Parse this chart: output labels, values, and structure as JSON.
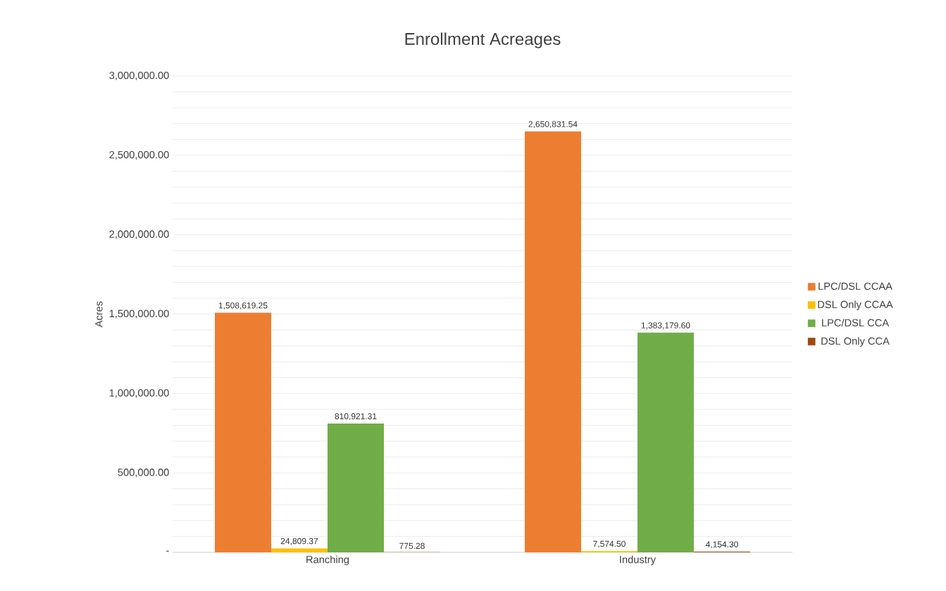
{
  "chart_data": {
    "type": "bar",
    "title": "Enrollment Acreages",
    "ylabel": "Acres",
    "categories": [
      "Ranching",
      "Industry"
    ],
    "series": [
      {
        "name": "LPC/DSL CCAA",
        "color": "#ed7d31",
        "values": [
          1508619.25,
          2650831.54
        ],
        "value_labels": [
          "1,508,619.25",
          "2,650,831.54"
        ]
      },
      {
        "name": "DSL Only CCAA",
        "color": "#ffc000",
        "values": [
          24809.37,
          7574.5
        ],
        "value_labels": [
          "24,809.37",
          "7,574.50"
        ]
      },
      {
        "name": "LPC/DSL CCA",
        "color": "#70ad47",
        "values": [
          810921.31,
          1383179.6
        ],
        "value_labels": [
          "810,921.31",
          "1,383,179.60"
        ]
      },
      {
        "name": "DSL Only CCA",
        "color": "#9e480e",
        "values": [
          775.28,
          4154.3
        ],
        "value_labels": [
          "775.28",
          "4,154.30"
        ]
      }
    ],
    "ylim": [
      0,
      3000000
    ],
    "yticks": [
      {
        "value": 0,
        "label": "-"
      },
      {
        "value": 100000,
        "label": null
      },
      {
        "value": 200000,
        "label": null
      },
      {
        "value": 300000,
        "label": null
      },
      {
        "value": 400000,
        "label": null
      },
      {
        "value": 500000,
        "label": "500,000.00"
      },
      {
        "value": 600000,
        "label": null
      },
      {
        "value": 700000,
        "label": null
      },
      {
        "value": 800000,
        "label": null
      },
      {
        "value": 900000,
        "label": null
      },
      {
        "value": 1000000,
        "label": "1,000,000.00"
      },
      {
        "value": 1100000,
        "label": null
      },
      {
        "value": 1200000,
        "label": null
      },
      {
        "value": 1300000,
        "label": null
      },
      {
        "value": 1400000,
        "label": null
      },
      {
        "value": 1500000,
        "label": "1,500,000.00"
      },
      {
        "value": 1600000,
        "label": null
      },
      {
        "value": 1700000,
        "label": null
      },
      {
        "value": 1800000,
        "label": null
      },
      {
        "value": 1900000,
        "label": null
      },
      {
        "value": 2000000,
        "label": "2,000,000.00"
      },
      {
        "value": 2100000,
        "label": null
      },
      {
        "value": 2200000,
        "label": null
      },
      {
        "value": 2300000,
        "label": null
      },
      {
        "value": 2400000,
        "label": null
      },
      {
        "value": 2500000,
        "label": "2,500,000.00"
      },
      {
        "value": 2600000,
        "label": null
      },
      {
        "value": 2700000,
        "label": null
      },
      {
        "value": 2800000,
        "label": null
      },
      {
        "value": 2900000,
        "label": null
      },
      {
        "value": 3000000,
        "label": "3,000,000.00"
      }
    ],
    "grid": "y",
    "legend": "right"
  }
}
